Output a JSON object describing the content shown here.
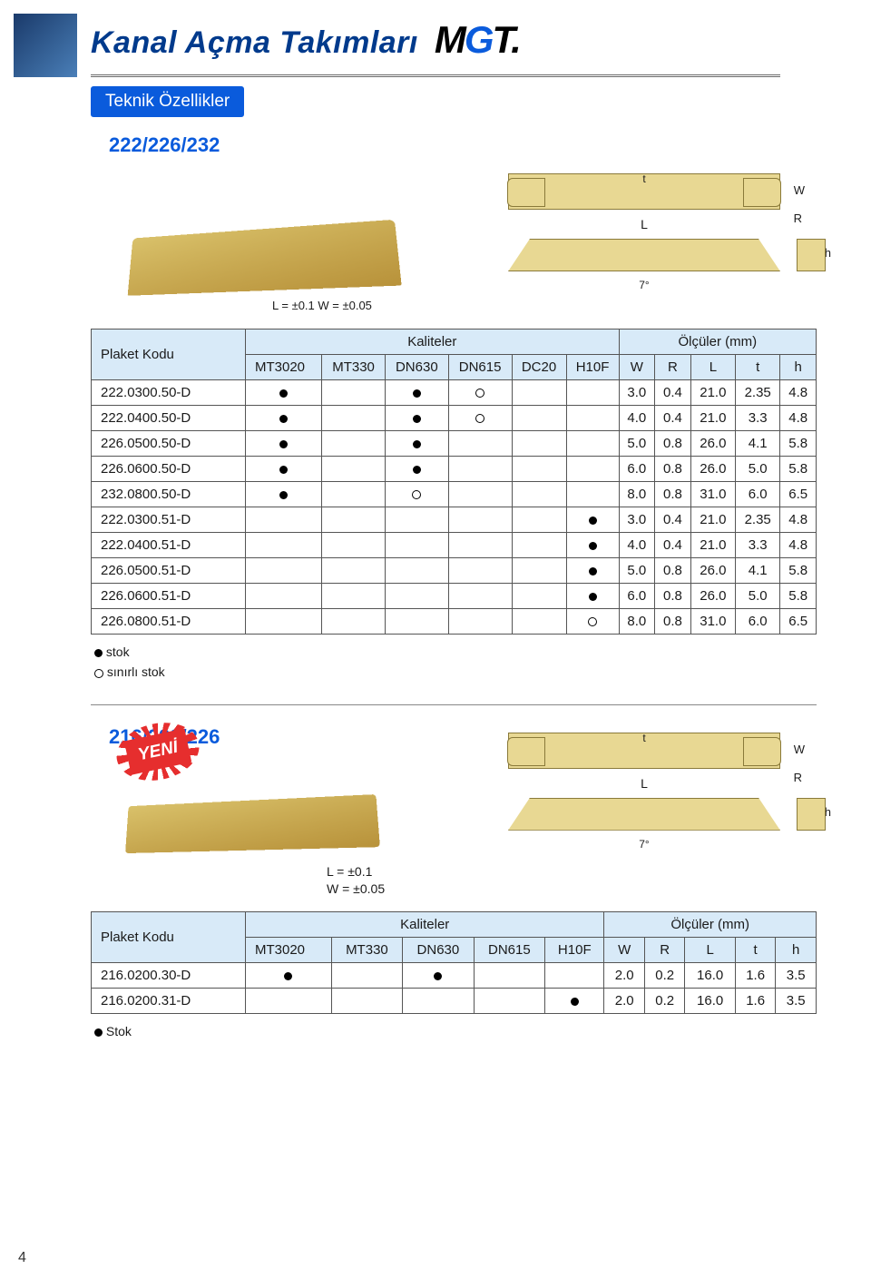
{
  "header": {
    "title": "Kanal Açma Takımları",
    "logo_m": "M",
    "logo_g": "G",
    "logo_t": "T."
  },
  "section_label": "Teknik Özellikler",
  "s1": {
    "code": "222/226/232",
    "tolerance": "L = ±0.1  W = ±0.05",
    "dims": {
      "W": "W",
      "R": "R",
      "L": "L",
      "t": "t",
      "h": "h",
      "seven": "7°"
    },
    "table": {
      "code_hdr": "Plaket Kodu",
      "grp1": "Kaliteler",
      "grp2": "Ölçüler (mm)",
      "qcols": [
        "MT3020",
        "MT330",
        "DN630",
        "DN615",
        "DC20",
        "H10F"
      ],
      "dcols": [
        "W",
        "R",
        "L",
        "t",
        "h"
      ],
      "rows": [
        {
          "c": "222.0300.50-D",
          "q": [
            "●",
            "",
            "●",
            "○",
            "",
            ""
          ],
          "d": [
            "3.0",
            "0.4",
            "21.0",
            "2.35",
            "4.8"
          ]
        },
        {
          "c": "222.0400.50-D",
          "q": [
            "●",
            "",
            "●",
            "○",
            "",
            ""
          ],
          "d": [
            "4.0",
            "0.4",
            "21.0",
            "3.3",
            "4.8"
          ]
        },
        {
          "c": "226.0500.50-D",
          "q": [
            "●",
            "",
            "●",
            "",
            "",
            ""
          ],
          "d": [
            "5.0",
            "0.8",
            "26.0",
            "4.1",
            "5.8"
          ]
        },
        {
          "c": "226.0600.50-D",
          "q": [
            "●",
            "",
            "●",
            "",
            "",
            ""
          ],
          "d": [
            "6.0",
            "0.8",
            "26.0",
            "5.0",
            "5.8"
          ]
        },
        {
          "c": "232.0800.50-D",
          "q": [
            "●",
            "",
            "○",
            "",
            "",
            ""
          ],
          "d": [
            "8.0",
            "0.8",
            "31.0",
            "6.0",
            "6.5"
          ]
        },
        {
          "c": "222.0300.51-D",
          "q": [
            "",
            "",
            "",
            "",
            "",
            "●"
          ],
          "d": [
            "3.0",
            "0.4",
            "21.0",
            "2.35",
            "4.8"
          ]
        },
        {
          "c": "222.0400.51-D",
          "q": [
            "",
            "",
            "",
            "",
            "",
            "●"
          ],
          "d": [
            "4.0",
            "0.4",
            "21.0",
            "3.3",
            "4.8"
          ]
        },
        {
          "c": "226.0500.51-D",
          "q": [
            "",
            "",
            "",
            "",
            "",
            "●"
          ],
          "d": [
            "5.0",
            "0.8",
            "26.0",
            "4.1",
            "5.8"
          ]
        },
        {
          "c": "226.0600.51-D",
          "q": [
            "",
            "",
            "",
            "",
            "",
            "●"
          ],
          "d": [
            "6.0",
            "0.8",
            "26.0",
            "5.0",
            "5.8"
          ]
        },
        {
          "c": "226.0800.51-D",
          "q": [
            "",
            "",
            "",
            "",
            "",
            "○"
          ],
          "d": [
            "8.0",
            "0.8",
            "31.0",
            "6.0",
            "6.5"
          ]
        }
      ]
    },
    "legend": {
      "stok": "stok",
      "sinirli": "sınırlı stok"
    }
  },
  "s2": {
    "code": "216/222/226",
    "yeni": "YENİ",
    "tol_l": "L  = ±0.1",
    "tol_w": "W = ±0.05",
    "dims": {
      "W": "W",
      "R": "R",
      "L": "L",
      "t": "t",
      "h": "h",
      "seven": "7°"
    },
    "table": {
      "code_hdr": "Plaket Kodu",
      "grp1": "Kaliteler",
      "grp2": "Ölçüler (mm)",
      "qcols": [
        "MT3020",
        "MT330",
        "DN630",
        "DN615",
        "H10F"
      ],
      "dcols": [
        "W",
        "R",
        "L",
        "t",
        "h"
      ],
      "rows": [
        {
          "c": "216.0200.30-D",
          "q": [
            "●",
            "",
            "●",
            "",
            ""
          ],
          "d": [
            "2.0",
            "0.2",
            "16.0",
            "1.6",
            "3.5"
          ]
        },
        {
          "c": "216.0200.31-D",
          "q": [
            "",
            "",
            "",
            "",
            "●"
          ],
          "d": [
            "2.0",
            "0.2",
            "16.0",
            "1.6",
            "3.5"
          ]
        }
      ]
    },
    "legend_stok": "Stok"
  },
  "page_number": "4"
}
